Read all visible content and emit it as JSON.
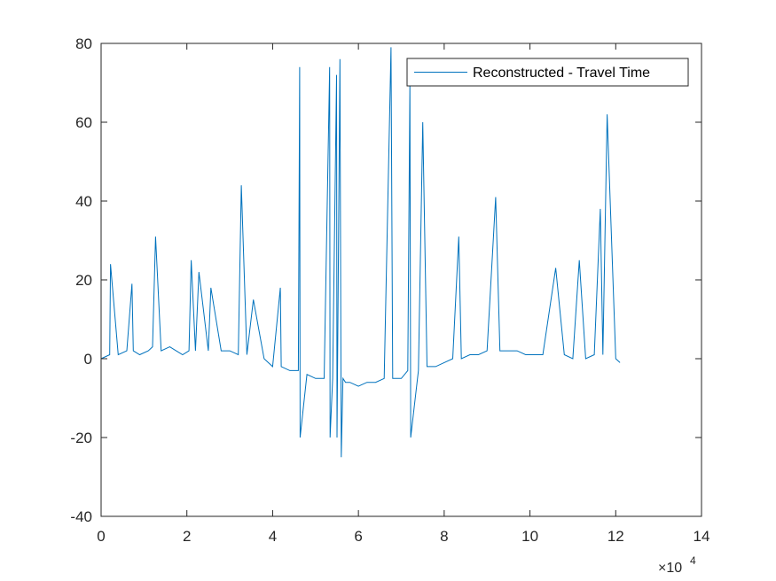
{
  "chart_data": {
    "type": "line",
    "title": "",
    "xlabel": "",
    "ylabel": "",
    "xlim": [
      0,
      14
    ],
    "ylim": [
      -40,
      80
    ],
    "x_exponent_label": {
      "base": "×10",
      "power": "4"
    },
    "x_ticks": [
      0,
      2,
      4,
      6,
      8,
      10,
      12,
      14
    ],
    "x_tick_labels": [
      "0",
      "2",
      "4",
      "6",
      "8",
      "10",
      "12",
      "14"
    ],
    "y_ticks": [
      -40,
      -20,
      0,
      20,
      40,
      60,
      80
    ],
    "y_tick_labels": [
      "-40",
      "-20",
      "0",
      "20",
      "40",
      "60",
      "80"
    ],
    "grid": false,
    "legend": {
      "placement": "top-right"
    },
    "series": [
      {
        "name": "Reconstructed - Travel Time",
        "color": "#0072BD",
        "x": [
          0.0,
          0.2,
          0.22,
          0.4,
          0.6,
          0.72,
          0.75,
          0.9,
          1.1,
          1.2,
          1.27,
          1.4,
          1.6,
          1.75,
          1.9,
          2.05,
          2.1,
          2.2,
          2.28,
          2.5,
          2.56,
          2.8,
          3.0,
          3.2,
          3.27,
          3.4,
          3.55,
          3.8,
          4.0,
          4.18,
          4.2,
          4.4,
          4.6,
          4.63,
          4.64,
          4.8,
          5.0,
          5.2,
          5.33,
          5.34,
          5.4,
          5.49,
          5.5,
          5.57,
          5.6,
          5.64,
          5.7,
          5.8,
          6.0,
          6.2,
          6.4,
          6.6,
          6.76,
          6.8,
          7.0,
          7.15,
          7.2,
          7.22,
          7.4,
          7.5,
          7.6,
          7.8,
          8.0,
          8.2,
          8.34,
          8.4,
          8.6,
          8.8,
          9.0,
          9.2,
          9.3,
          9.5,
          9.7,
          9.9,
          10.1,
          10.3,
          10.6,
          10.8,
          11.0,
          11.15,
          11.3,
          11.5,
          11.64,
          11.7,
          11.8,
          12.0,
          12.1
        ],
        "y": [
          0,
          1,
          24,
          1,
          2,
          19,
          2,
          1,
          2,
          3,
          31,
          2,
          3,
          2,
          1,
          2,
          25,
          2,
          22,
          2,
          18,
          2,
          2,
          1,
          44,
          1,
          15,
          0,
          -2,
          18,
          -2,
          -3,
          -3,
          74,
          -20,
          -4,
          -5,
          -5,
          74,
          -20,
          -5,
          72,
          -20,
          76,
          -25,
          -5,
          -6,
          -6,
          -7,
          -6,
          -6,
          -5,
          79,
          -5,
          -5,
          -3,
          70,
          -20,
          -3,
          60,
          -2,
          -2,
          -1,
          0,
          31,
          0,
          1,
          1,
          2,
          41,
          2,
          2,
          2,
          1,
          1,
          1,
          23,
          1,
          0,
          25,
          0,
          1,
          38,
          1,
          62,
          0,
          -1
        ]
      }
    ]
  }
}
